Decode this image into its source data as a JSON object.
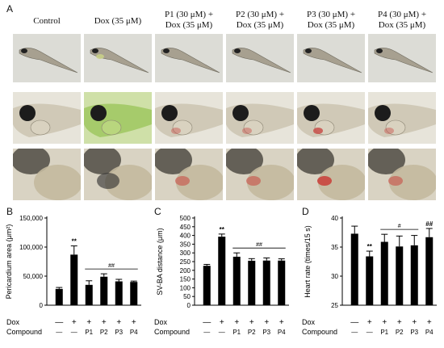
{
  "panel_letters": {
    "a": "A",
    "b": "B",
    "c": "C",
    "d": "D"
  },
  "columns": [
    {
      "line1": "Control",
      "line2": ""
    },
    {
      "line1": "Dox (35 μM)",
      "line2": ""
    },
    {
      "line1": "P1 (30 μM) +",
      "line2": "Dox (35 μM)"
    },
    {
      "line1": "P2 (30 μM) +",
      "line2": "Dox (35 μM)"
    },
    {
      "line1": "P3 (30 μM) +",
      "line2": "Dox (35 μM)"
    },
    {
      "line1": "P4 (30 μM) +",
      "line2": "Dox (35 μM)"
    }
  ],
  "photo_rows": [
    "whole larva",
    "head and heart",
    "heart close-up"
  ],
  "treatment_rows": {
    "dox_label": "Dox",
    "compound_label": "Compound",
    "dox": [
      "—",
      "+",
      "+",
      "+",
      "+",
      "+"
    ],
    "compound": [
      "—",
      "—",
      "P1",
      "P2",
      "P3",
      "P4"
    ]
  },
  "colors": {
    "bar": "#000000",
    "axis": "#000000"
  },
  "chart_data": [
    {
      "type": "bar",
      "panel": "B",
      "ylabel": "Pericardium area (μm²)",
      "ylim": [
        0,
        150000
      ],
      "yticks": [
        "0",
        "50,000",
        "100,000",
        "150,000"
      ],
      "ytick_values": [
        0,
        50000,
        100000,
        150000
      ],
      "values": [
        28000,
        87000,
        35000,
        49000,
        41000,
        40000
      ],
      "errors": [
        2500,
        15000,
        7000,
        5000,
        3500,
        1500
      ],
      "annotations": [
        {
          "text": "**",
          "bar": 1
        },
        {
          "text": "##",
          "from": 2,
          "to": 5
        }
      ]
    },
    {
      "type": "bar",
      "panel": "C",
      "ylabel": "SV-BA distance (μm)",
      "ylim": [
        0,
        500
      ],
      "yticks": [
        "0",
        "50",
        "100",
        "150",
        "200",
        "250",
        "300",
        "350",
        "400",
        "450",
        "500"
      ],
      "ytick_values": [
        0,
        50,
        100,
        150,
        200,
        250,
        300,
        350,
        400,
        450,
        500
      ],
      "values": [
        226,
        393,
        278,
        255,
        256,
        256
      ],
      "errors": [
        8,
        15,
        22,
        12,
        15,
        10
      ],
      "annotations": [
        {
          "text": "**",
          "bar": 1
        },
        {
          "text": "##",
          "from": 2,
          "to": 5
        }
      ]
    },
    {
      "type": "bar",
      "panel": "D",
      "ylabel": "Heart rate (times/15 s)",
      "ylim": [
        25,
        40
      ],
      "yticks": [
        "25",
        "30",
        "35",
        "40"
      ],
      "ytick_values": [
        25,
        30,
        35,
        40
      ],
      "values": [
        37.3,
        33.4,
        35.9,
        35.1,
        35.3,
        36.7
      ],
      "errors": [
        1.3,
        0.9,
        1.3,
        1.8,
        1.7,
        1.5
      ],
      "annotations": [
        {
          "text": "**",
          "bar": 1
        },
        {
          "text": "#",
          "from": 2,
          "to": 4
        },
        {
          "text": "##",
          "bar": 5
        }
      ]
    }
  ]
}
